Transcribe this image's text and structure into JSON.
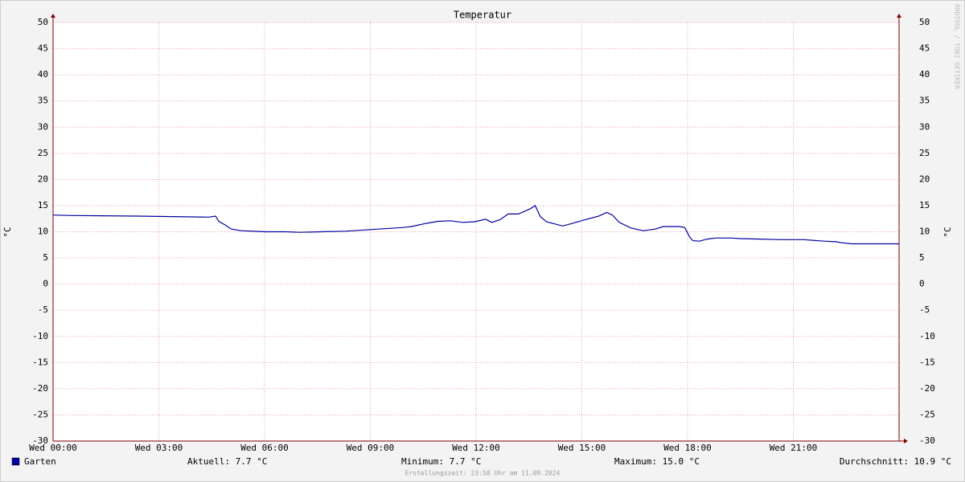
{
  "chart_data": {
    "type": "line",
    "title": "Temperatur",
    "y_label": "°C",
    "y2_label": "°C",
    "watermark": "RRDTOOL / TOBI OETIKER",
    "footer": "Erstellungszeit: 23:58 Uhr am 11.09.2024",
    "x": [
      0,
      0.55,
      2.37,
      3.4,
      4.42,
      4.61,
      4.7,
      4.88,
      5.06,
      5.34,
      6.02,
      6.59,
      6.98,
      7.62,
      8.3,
      9.21,
      9.9,
      10.17,
      10.58,
      10.92,
      11.27,
      11.61,
      11.95,
      12.27,
      12.45,
      12.68,
      12.91,
      13.2,
      13.54,
      13.68,
      13.82,
      14.0,
      14.23,
      14.46,
      14.73,
      15.14,
      15.48,
      15.71,
      15.87,
      16.06,
      16.4,
      16.74,
      17.08,
      17.31,
      17.77,
      17.92,
      18.06,
      18.15,
      18.34,
      18.56,
      18.79,
      19.25,
      19.48,
      20.05,
      20.62,
      21.3,
      21.87,
      22.21,
      22.37,
      22.67,
      24
    ],
    "series": [
      {
        "name": "Garten",
        "color": "#0000a0",
        "values": [
          13.2,
          13.1,
          13.0,
          12.9,
          12.8,
          13.0,
          12.0,
          11.3,
          10.5,
          10.2,
          10.0,
          10.0,
          9.9,
          10.0,
          10.1,
          10.5,
          10.8,
          11.0,
          11.6,
          12.0,
          12.1,
          11.8,
          11.9,
          12.4,
          11.8,
          12.3,
          13.4,
          13.4,
          14.4,
          15.0,
          12.9,
          11.9,
          11.5,
          11.1,
          11.6,
          12.4,
          13.0,
          13.7,
          13.2,
          11.8,
          10.7,
          10.2,
          10.5,
          11.0,
          11.0,
          10.8,
          9.0,
          8.3,
          8.2,
          8.6,
          8.8,
          8.8,
          8.7,
          8.6,
          8.5,
          8.5,
          8.2,
          8.1,
          7.9,
          7.7,
          7.7
        ]
      }
    ],
    "stats": [
      "Aktuell: 7.7 °C",
      "Minimum: 7.7 °C",
      "Maximum: 15.0 °C",
      "Durchschnitt: 10.9 °C"
    ],
    "xlim": [
      0,
      24
    ],
    "xticks": [
      {
        "value": 0,
        "label": "Wed 00:00"
      },
      {
        "value": 3,
        "label": "Wed 03:00"
      },
      {
        "value": 6,
        "label": "Wed 06:00"
      },
      {
        "value": 9,
        "label": "Wed 09:00"
      },
      {
        "value": 12,
        "label": "Wed 12:00"
      },
      {
        "value": 15,
        "label": "Wed 15:00"
      },
      {
        "value": 18,
        "label": "Wed 18:00"
      },
      {
        "value": 21,
        "label": "Wed 21:00"
      }
    ],
    "ylim": [
      -30,
      50
    ],
    "yticks": [
      -30,
      -25,
      -20,
      -15,
      -10,
      -5,
      0,
      5,
      10,
      15,
      20,
      25,
      30,
      35,
      40,
      45,
      50
    ],
    "grid": true
  }
}
